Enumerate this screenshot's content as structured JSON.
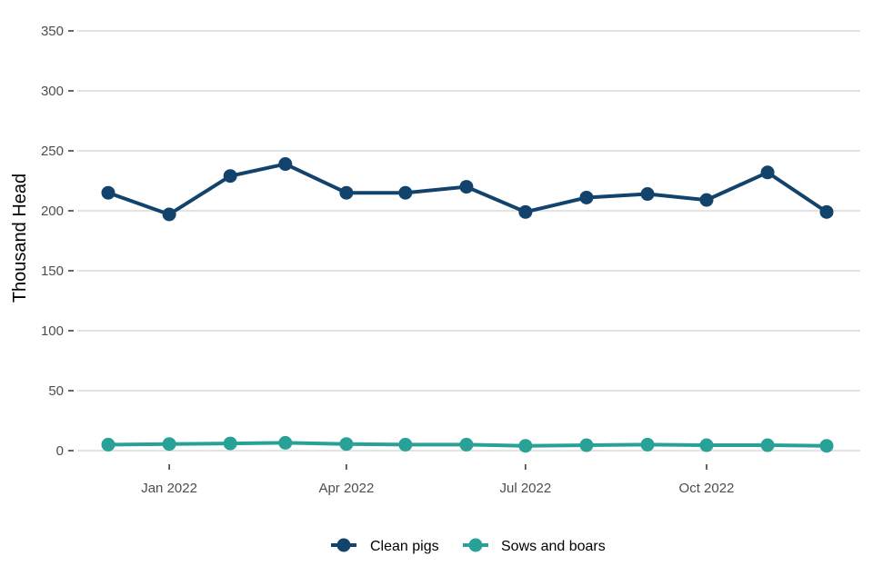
{
  "chart_data": {
    "type": "line",
    "title": "",
    "xlabel": "",
    "ylabel": "Thousand Head",
    "ylim": [
      0,
      350
    ],
    "yticks": [
      0,
      50,
      100,
      150,
      200,
      250,
      300,
      350
    ],
    "xticks": [
      {
        "date": "2022-01-01",
        "label": "Jan 2022"
      },
      {
        "date": "2022-04-01",
        "label": "Apr 2022"
      },
      {
        "date": "2022-07-01",
        "label": "Jul 2022"
      },
      {
        "date": "2022-10-01",
        "label": "Oct 2022"
      }
    ],
    "x": [
      "2021-12-01",
      "2022-01-01",
      "2022-02-01",
      "2022-03-01",
      "2022-04-01",
      "2022-05-01",
      "2022-06-01",
      "2022-07-01",
      "2022-08-01",
      "2022-09-01",
      "2022-10-01",
      "2022-11-01",
      "2022-12-01"
    ],
    "grid": "horizontal",
    "legend_position": "bottom",
    "series": [
      {
        "name": "Clean pigs",
        "color": "#12436D",
        "values": [
          215,
          197,
          229,
          239,
          215,
          215,
          220,
          199,
          211,
          214,
          209,
          232,
          199
        ]
      },
      {
        "name": "Sows and boars",
        "color": "#28A197",
        "values": [
          5,
          5.5,
          6,
          6.5,
          5.5,
          5,
          5,
          4,
          4.5,
          5,
          4.5,
          4.5,
          4
        ]
      }
    ]
  }
}
